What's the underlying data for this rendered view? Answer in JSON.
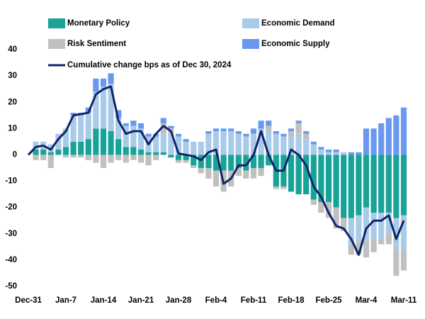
{
  "chart_data": {
    "type": "stacked-bar-line",
    "categories": [
      "Dec-31",
      null,
      null,
      null,
      null,
      "Jan-7",
      null,
      null,
      null,
      null,
      "Jan-14",
      null,
      null,
      null,
      null,
      "Jan-21",
      null,
      null,
      null,
      null,
      "Jan-28",
      null,
      null,
      null,
      null,
      "Feb-4",
      null,
      null,
      null,
      null,
      "Feb-11",
      null,
      null,
      null,
      null,
      "Feb-18",
      null,
      null,
      null,
      null,
      "Feb-25",
      null,
      null,
      null,
      null,
      "Mar-4",
      null,
      null,
      null,
      null,
      "Mar-11"
    ],
    "ylim": [
      -50,
      40
    ],
    "yticks": [
      -50,
      -40,
      -30,
      -20,
      -10,
      0,
      10,
      20,
      30,
      40
    ],
    "series": [
      {
        "name": "Monetary Policy",
        "color": "#17a398",
        "values": [
          0,
          2,
          2,
          1,
          2,
          3,
          5,
          5,
          6,
          10,
          10,
          9,
          6,
          3,
          3,
          2,
          1,
          1,
          1,
          -1,
          -2,
          -2,
          -4,
          -5,
          -5,
          -6,
          -6,
          -6,
          -5,
          -6,
          -5,
          -5,
          -4,
          -12,
          -12,
          -14,
          -15,
          -15,
          -17,
          -18,
          -18,
          -20,
          -24,
          -24,
          -23,
          -20,
          -22,
          -22,
          -22,
          -24,
          -23
        ]
      },
      {
        "name": "Economic Demand",
        "color": "#a9cbea",
        "values": [
          0,
          3,
          3,
          3,
          6,
          7,
          10,
          10,
          10,
          14,
          16,
          18,
          8,
          8,
          8,
          8,
          6,
          6,
          7,
          8,
          7,
          5,
          5,
          5,
          8,
          9,
          9,
          9,
          8,
          7,
          8,
          10,
          9,
          8,
          7,
          7,
          8,
          6,
          4,
          2,
          1,
          1,
          1,
          -10,
          -10,
          -13,
          -10,
          -10,
          -8,
          -12,
          -13
        ]
      },
      {
        "name": "Risk Sentiment",
        "color": "#c0c0c0",
        "values": [
          0,
          -2,
          -2,
          -5,
          0,
          -1,
          -1,
          -1,
          -2,
          -3,
          -5,
          -3,
          -2,
          -3,
          -2,
          -3,
          -4,
          -2,
          4,
          2,
          -1,
          -1,
          -1,
          -2,
          -4,
          -6,
          -8,
          -6,
          -3,
          -3,
          -4,
          -3,
          2,
          -1,
          -1,
          2,
          4,
          2,
          -2,
          -4,
          -6,
          -8,
          -5,
          -4,
          -5,
          -6,
          -5,
          -2,
          -4,
          -10,
          -8
        ]
      },
      {
        "name": "Economic Supply",
        "color": "#6a98ee",
        "values": [
          0,
          0,
          0,
          0,
          0,
          0,
          1,
          1,
          2,
          5,
          3,
          4,
          3,
          1,
          2,
          2,
          1,
          1,
          2,
          1,
          1,
          1,
          0,
          0,
          1,
          1,
          1,
          1,
          1,
          1,
          2,
          3,
          2,
          1,
          1,
          1,
          1,
          1,
          1,
          1,
          1,
          1,
          0,
          1,
          1,
          10,
          10,
          12,
          14,
          15,
          18
        ]
      }
    ],
    "line": {
      "name": "Cumulative change bps  as of Dec 30, 2024",
      "color": "#0f2469",
      "values": [
        0,
        3,
        3.5,
        2,
        6,
        9,
        15,
        15.5,
        16,
        23,
        25,
        26,
        13,
        8,
        9,
        9,
        4,
        8,
        11,
        9,
        0.5,
        0,
        -0.5,
        -2,
        1,
        2,
        -11,
        -9,
        -4,
        -4,
        0,
        9,
        0,
        -6,
        -6,
        2,
        0,
        -4,
        -12,
        -16,
        -22,
        -27,
        -28,
        -32,
        -38,
        -28,
        -25,
        -25,
        -23,
        -32,
        -25
      ]
    }
  }
}
